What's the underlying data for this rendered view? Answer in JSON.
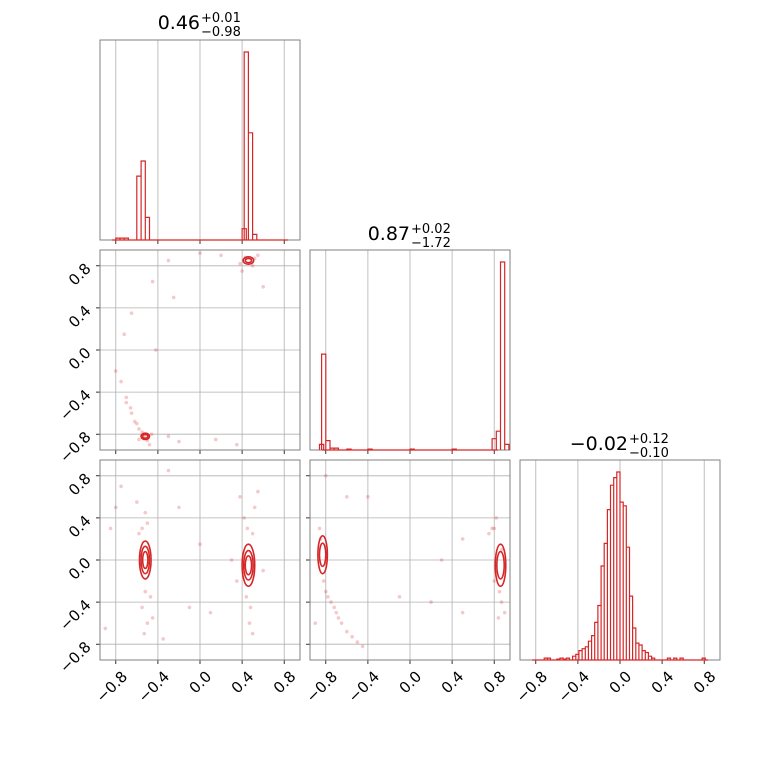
{
  "colors": {
    "series": "#d62728",
    "grid": "#b0b0b0",
    "frame": "#808080"
  },
  "titles": {
    "p1": {
      "val": "0.46",
      "plus": "+0.01",
      "minus": "−0.98"
    },
    "p2": {
      "val": "0.87",
      "plus": "+0.02",
      "minus": "−1.72"
    },
    "p3": {
      "val": "−0.02",
      "plus": "+0.12",
      "minus": "−0.10"
    }
  },
  "tick_labels": [
    "−0.8",
    "−0.4",
    "0.0",
    "0.4",
    "0.8"
  ],
  "chart_data": {
    "type": "corner",
    "tick_values": [
      -0.8,
      -0.4,
      0.0,
      0.4,
      0.8
    ],
    "xlim": [
      -0.95,
      0.95
    ],
    "grid": true,
    "hist": [
      {
        "param": "p1",
        "bin_width": 0.04,
        "bins": [
          [
            -0.8,
            0.01
          ],
          [
            -0.76,
            0.01
          ],
          [
            -0.72,
            0.01
          ],
          [
            -0.6,
            0.34
          ],
          [
            -0.56,
            0.42
          ],
          [
            -0.52,
            0.12
          ],
          [
            0.4,
            0.06
          ],
          [
            0.42,
            1.0
          ],
          [
            0.46,
            0.57
          ],
          [
            0.5,
            0.03
          ]
        ]
      },
      {
        "param": "p2",
        "bin_width": 0.04,
        "bins": [
          [
            -0.86,
            0.03
          ],
          [
            -0.84,
            0.51
          ],
          [
            -0.8,
            0.05
          ],
          [
            -0.76,
            0.01
          ],
          [
            -0.72,
            0.01
          ],
          [
            -0.6,
            0.005
          ],
          [
            -0.4,
            0.005
          ],
          [
            0.0,
            0.005
          ],
          [
            0.4,
            0.005
          ],
          [
            0.78,
            0.06
          ],
          [
            0.82,
            0.1
          ],
          [
            0.86,
            1.0
          ],
          [
            0.9,
            0.03
          ]
        ]
      },
      {
        "param": "p3",
        "bin_width": 0.03,
        "bins": [
          [
            -0.72,
            0.01
          ],
          [
            -0.69,
            0.01
          ],
          [
            -0.6,
            0.005
          ],
          [
            -0.57,
            0.01
          ],
          [
            -0.54,
            0.005
          ],
          [
            -0.51,
            0.01
          ],
          [
            -0.45,
            0.02
          ],
          [
            -0.42,
            0.03
          ],
          [
            -0.39,
            0.05
          ],
          [
            -0.36,
            0.06
          ],
          [
            -0.33,
            0.07
          ],
          [
            -0.3,
            0.1
          ],
          [
            -0.27,
            0.13
          ],
          [
            -0.24,
            0.2
          ],
          [
            -0.21,
            0.29
          ],
          [
            -0.18,
            0.5
          ],
          [
            -0.15,
            0.62
          ],
          [
            -0.12,
            0.8
          ],
          [
            -0.09,
            0.93
          ],
          [
            -0.06,
            0.97
          ],
          [
            -0.03,
            1.0
          ],
          [
            0.0,
            0.84
          ],
          [
            0.03,
            0.82
          ],
          [
            0.06,
            0.6
          ],
          [
            0.09,
            0.34
          ],
          [
            0.12,
            0.17
          ],
          [
            0.15,
            0.09
          ],
          [
            0.18,
            0.08
          ],
          [
            0.21,
            0.05
          ],
          [
            0.24,
            0.04
          ],
          [
            0.27,
            0.02
          ],
          [
            0.3,
            0.01
          ],
          [
            0.45,
            0.01
          ],
          [
            0.51,
            0.01
          ],
          [
            0.57,
            0.01
          ],
          [
            0.78,
            0.01
          ]
        ]
      }
    ],
    "pairs": [
      {
        "x": "p1",
        "y": "p2",
        "contours": [
          {
            "cx": -0.52,
            "cy": -0.82,
            "rx": 0.04,
            "ry": 0.03
          },
          {
            "cx": -0.52,
            "cy": -0.82,
            "rx": 0.025,
            "ry": 0.018
          },
          {
            "cx": 0.46,
            "cy": 0.85,
            "rx": 0.05,
            "ry": 0.035
          },
          {
            "cx": 0.46,
            "cy": 0.85,
            "rx": 0.03,
            "ry": 0.02
          }
        ],
        "points": [
          [
            -0.52,
            -0.82
          ],
          [
            -0.55,
            -0.78
          ],
          [
            -0.5,
            -0.86
          ],
          [
            -0.58,
            -0.75
          ],
          [
            -0.6,
            -0.7
          ],
          [
            -0.65,
            -0.6
          ],
          [
            -0.7,
            -0.5
          ],
          [
            -0.75,
            -0.3
          ],
          [
            -0.8,
            -0.2
          ],
          [
            -0.48,
            -0.9
          ],
          [
            -0.3,
            -0.82
          ],
          [
            -0.2,
            -0.87
          ],
          [
            -0.72,
            0.15
          ],
          [
            -0.65,
            0.35
          ],
          [
            -0.42,
            0.0
          ],
          [
            -0.45,
            0.65
          ],
          [
            -0.25,
            0.5
          ],
          [
            0.15,
            -0.85
          ],
          [
            0.35,
            -0.9
          ],
          [
            0.4,
            0.75
          ],
          [
            0.5,
            0.8
          ],
          [
            0.55,
            0.9
          ],
          [
            0.43,
            0.88
          ],
          [
            0.49,
            0.83
          ],
          [
            0.2,
            0.9
          ],
          [
            0.0,
            0.92
          ],
          [
            -0.3,
            0.85
          ],
          [
            0.6,
            0.6
          ],
          [
            -0.62,
            -0.68
          ],
          [
            -0.66,
            -0.55
          ],
          [
            -0.7,
            -0.45
          ],
          [
            -0.58,
            -0.85
          ],
          [
            -0.46,
            -0.8
          ],
          [
            0.38,
            0.82
          ],
          [
            0.52,
            0.87
          ]
        ]
      },
      {
        "x": "p1",
        "y": "p3",
        "contours": [
          {
            "cx": -0.52,
            "cy": 0.0,
            "rx": 0.055,
            "ry": 0.18
          },
          {
            "cx": -0.52,
            "cy": 0.0,
            "rx": 0.04,
            "ry": 0.13
          },
          {
            "cx": -0.52,
            "cy": 0.0,
            "rx": 0.025,
            "ry": 0.08
          },
          {
            "cx": 0.46,
            "cy": -0.05,
            "rx": 0.06,
            "ry": 0.2
          },
          {
            "cx": 0.46,
            "cy": -0.05,
            "rx": 0.045,
            "ry": 0.14
          },
          {
            "cx": 0.46,
            "cy": -0.05,
            "rx": 0.03,
            "ry": 0.09
          }
        ],
        "points": [
          [
            -0.55,
            0.3
          ],
          [
            -0.5,
            0.35
          ],
          [
            -0.52,
            -0.3
          ],
          [
            -0.55,
            -0.45
          ],
          [
            -0.5,
            -0.6
          ],
          [
            -0.58,
            0.25
          ],
          [
            -0.47,
            -0.35
          ],
          [
            -0.53,
            -0.7
          ],
          [
            -0.52,
            0.45
          ],
          [
            0.45,
            0.3
          ],
          [
            0.5,
            0.25
          ],
          [
            0.44,
            -0.35
          ],
          [
            0.48,
            -0.45
          ],
          [
            0.5,
            -0.7
          ],
          [
            0.42,
            0.4
          ],
          [
            0.47,
            -0.6
          ],
          [
            -0.75,
            0.7
          ],
          [
            -0.8,
            0.5
          ],
          [
            -0.2,
            0.5
          ],
          [
            -0.3,
            0.85
          ],
          [
            0.3,
            0.0
          ],
          [
            0.6,
            -0.1
          ],
          [
            -0.1,
            -0.45
          ],
          [
            0.1,
            -0.5
          ],
          [
            -0.35,
            -0.75
          ],
          [
            0.55,
            0.65
          ],
          [
            0.38,
            0.6
          ],
          [
            -0.85,
            0.3
          ],
          [
            -0.6,
            0.55
          ],
          [
            0.35,
            -0.2
          ],
          [
            0.52,
            0.5
          ],
          [
            -0.45,
            -0.55
          ],
          [
            0.0,
            0.15
          ],
          [
            -0.9,
            -0.65
          ]
        ]
      },
      {
        "x": "p2",
        "y": "p3",
        "contours": [
          {
            "cx": -0.83,
            "cy": 0.05,
            "rx": 0.045,
            "ry": 0.18
          },
          {
            "cx": -0.83,
            "cy": 0.05,
            "rx": 0.03,
            "ry": 0.11
          },
          {
            "cx": 0.86,
            "cy": -0.05,
            "rx": 0.05,
            "ry": 0.2
          },
          {
            "cx": 0.86,
            "cy": -0.05,
            "rx": 0.035,
            "ry": 0.13
          }
        ],
        "points": [
          [
            -0.85,
            0.2
          ],
          [
            -0.82,
            -0.2
          ],
          [
            -0.8,
            -0.3
          ],
          [
            -0.75,
            -0.4
          ],
          [
            -0.7,
            -0.5
          ],
          [
            -0.65,
            -0.6
          ],
          [
            -0.6,
            -0.68
          ],
          [
            -0.55,
            -0.73
          ],
          [
            -0.5,
            -0.78
          ],
          [
            -0.45,
            -0.82
          ],
          [
            -0.78,
            -0.35
          ],
          [
            -0.72,
            -0.45
          ],
          [
            -0.68,
            -0.55
          ],
          [
            -0.86,
            0.3
          ],
          [
            -0.6,
            0.6
          ],
          [
            -0.8,
            0.8
          ],
          [
            -0.4,
            0.6
          ],
          [
            -0.1,
            -0.35
          ],
          [
            0.2,
            -0.4
          ],
          [
            0.5,
            -0.5
          ],
          [
            0.8,
            0.3
          ],
          [
            0.82,
            0.4
          ],
          [
            0.78,
            0.3
          ],
          [
            0.85,
            -0.3
          ],
          [
            0.87,
            -0.4
          ],
          [
            0.8,
            -0.2
          ],
          [
            0.75,
            0.25
          ],
          [
            0.9,
            -0.5
          ],
          [
            0.5,
            0.2
          ],
          [
            0.3,
            0.0
          ],
          [
            -0.9,
            -0.6
          ],
          [
            0.87,
            0.1
          ],
          [
            0.84,
            -0.55
          ]
        ]
      }
    ]
  }
}
